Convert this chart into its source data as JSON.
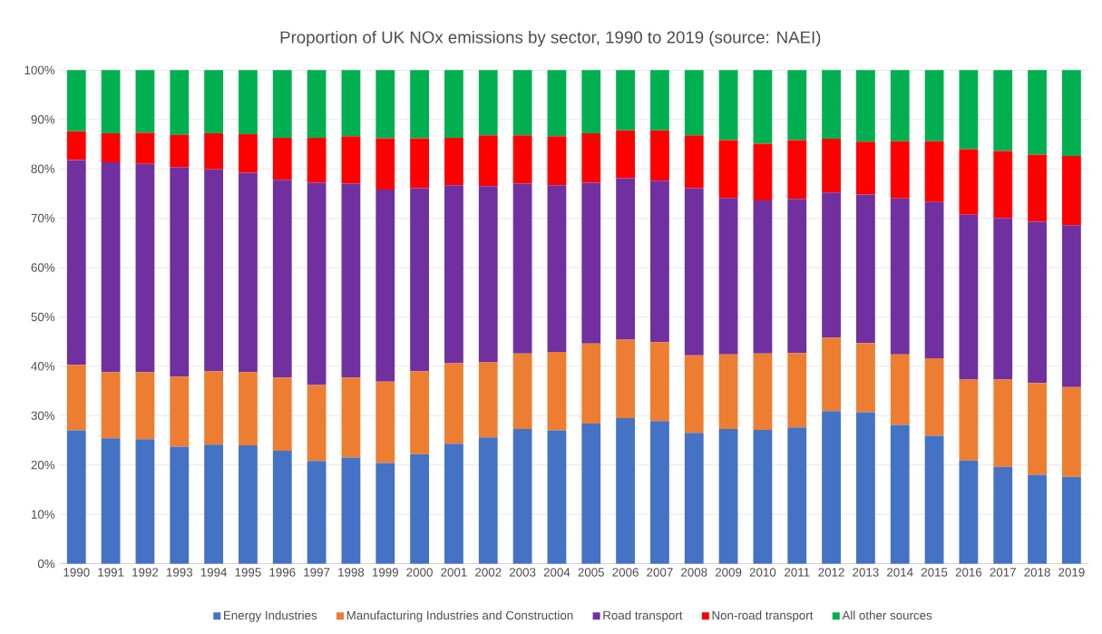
{
  "chart_data": {
    "type": "bar",
    "stacked": true,
    "title": "Proportion of UK NOx emissions by sector, 1990 to 2019 (source: NAEI)",
    "categories": [
      "1990",
      "1991",
      "1992",
      "1993",
      "1994",
      "1995",
      "1996",
      "1997",
      "1998",
      "1999",
      "2000",
      "2001",
      "2002",
      "2003",
      "2004",
      "2005",
      "2006",
      "2007",
      "2008",
      "2009",
      "2010",
      "2011",
      "2012",
      "2013",
      "2014",
      "2015",
      "2016",
      "2017",
      "2018",
      "2019"
    ],
    "series": [
      {
        "name": "Energy Industries",
        "color": "#4472c4",
        "values": [
          27.0,
          25.4,
          25.2,
          23.7,
          24.1,
          24.0,
          22.9,
          20.8,
          21.5,
          20.4,
          22.2,
          24.3,
          25.6,
          27.3,
          27.0,
          28.4,
          29.5,
          28.9,
          26.5,
          27.3,
          27.1,
          27.6,
          30.9,
          30.7,
          28.1,
          25.9,
          20.9,
          19.6,
          18.0,
          17.6
        ]
      },
      {
        "name": "Manufacturing Industries and Construction",
        "color": "#ed7d31",
        "values": [
          13.3,
          13.4,
          13.6,
          14.2,
          14.9,
          14.8,
          14.8,
          15.4,
          16.2,
          16.5,
          16.8,
          16.3,
          15.2,
          15.3,
          15.9,
          16.2,
          15.9,
          16.0,
          15.7,
          15.1,
          15.5,
          15.1,
          14.9,
          14.0,
          14.3,
          15.7,
          16.4,
          17.7,
          18.6,
          18.2
        ]
      },
      {
        "name": "Road transport",
        "color": "#7030a0",
        "values": [
          41.5,
          42.5,
          42.2,
          42.4,
          40.9,
          40.4,
          40.1,
          41.0,
          39.3,
          38.9,
          37.1,
          36.1,
          35.7,
          34.4,
          33.8,
          32.6,
          32.7,
          32.7,
          33.9,
          31.7,
          31.0,
          31.2,
          29.4,
          30.1,
          31.6,
          31.7,
          33.4,
          32.7,
          32.7,
          32.8
        ]
      },
      {
        "name": "Non-road transport",
        "color": "#ff0000",
        "values": [
          5.8,
          5.9,
          6.3,
          6.6,
          7.3,
          7.8,
          8.5,
          9.1,
          9.6,
          10.4,
          10.1,
          9.6,
          10.3,
          9.8,
          9.9,
          10.0,
          9.7,
          10.2,
          10.7,
          11.7,
          11.5,
          11.9,
          10.9,
          10.7,
          11.6,
          12.3,
          13.3,
          13.6,
          13.6,
          14.0
        ]
      },
      {
        "name": "All other sources",
        "color": "#00b050",
        "values": [
          12.4,
          12.8,
          12.7,
          13.1,
          12.8,
          13.0,
          13.7,
          13.7,
          13.4,
          13.8,
          13.8,
          13.7,
          13.2,
          13.2,
          13.4,
          12.8,
          12.2,
          12.2,
          13.2,
          14.2,
          14.9,
          14.2,
          13.9,
          14.5,
          14.4,
          14.4,
          16.0,
          16.4,
          17.1,
          17.4
        ]
      }
    ],
    "ylim": [
      0,
      100
    ],
    "yticks": [
      {
        "value": 0,
        "label": "0%"
      },
      {
        "value": 10,
        "label": "10%"
      },
      {
        "value": 20,
        "label": "20%"
      },
      {
        "value": 30,
        "label": "30%"
      },
      {
        "value": 40,
        "label": "40%"
      },
      {
        "value": 50,
        "label": "50%"
      },
      {
        "value": 60,
        "label": "60%"
      },
      {
        "value": 70,
        "label": "70%"
      },
      {
        "value": 80,
        "label": "80%"
      },
      {
        "value": 90,
        "label": "90%"
      },
      {
        "value": 100,
        "label": "100%"
      }
    ],
    "grid": "y",
    "legend": "bottom"
  }
}
